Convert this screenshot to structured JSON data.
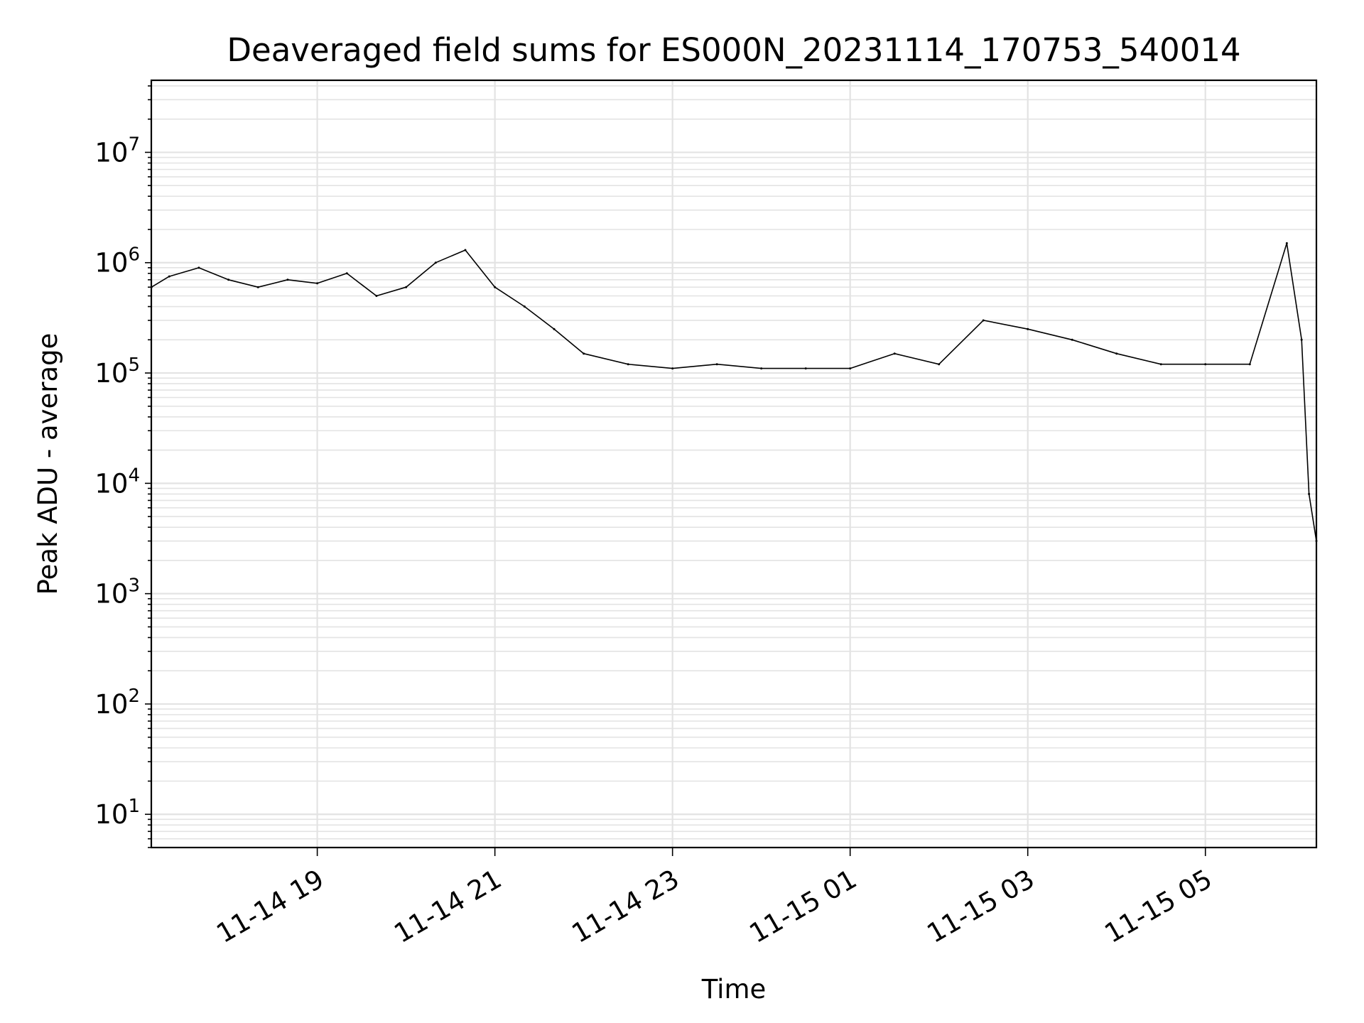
{
  "chart_data": {
    "type": "line",
    "title": "Deaveraged field sums for ES000N_20231114_170753_540014",
    "xlabel": "Time",
    "ylabel": "Peak ADU - average",
    "yscale": "log",
    "ylim": [
      5,
      45000000
    ],
    "xlim": [
      "2023-11-14 17:07:53",
      "2023-11-15 06:15:00"
    ],
    "grid": true,
    "line_color": "#000000",
    "grid_color": "#e3e3e3",
    "x_ticks": [
      {
        "value": "2023-11-14 19:00",
        "label": "11-14 19"
      },
      {
        "value": "2023-11-14 21:00",
        "label": "11-14 21"
      },
      {
        "value": "2023-11-14 23:00",
        "label": "11-14 23"
      },
      {
        "value": "2023-11-15 01:00",
        "label": "11-15 01"
      },
      {
        "value": "2023-11-15 03:00",
        "label": "11-15 03"
      },
      {
        "value": "2023-11-15 05:00",
        "label": "11-15 05"
      }
    ],
    "y_ticks": [
      {
        "value": 10,
        "base": "10",
        "exp": "1"
      },
      {
        "value": 100,
        "base": "10",
        "exp": "2"
      },
      {
        "value": 1000,
        "base": "10",
        "exp": "3"
      },
      {
        "value": 10000,
        "base": "10",
        "exp": "4"
      },
      {
        "value": 100000,
        "base": "10",
        "exp": "5"
      },
      {
        "value": 1000000,
        "base": "10",
        "exp": "6"
      },
      {
        "value": 10000000,
        "base": "10",
        "exp": "7"
      }
    ],
    "series": [
      {
        "x": [
          "2023-11-14 17:08",
          "2023-11-14 17:20",
          "2023-11-14 17:40",
          "2023-11-14 18:00",
          "2023-11-14 18:20",
          "2023-11-14 18:40",
          "2023-11-14 19:00",
          "2023-11-14 19:20",
          "2023-11-14 19:40",
          "2023-11-14 20:00",
          "2023-11-14 20:20",
          "2023-11-14 20:40",
          "2023-11-14 21:00",
          "2023-11-14 21:20",
          "2023-11-14 21:40",
          "2023-11-14 22:00",
          "2023-11-14 22:30",
          "2023-11-14 23:00",
          "2023-11-14 23:30",
          "2023-11-15 00:00",
          "2023-11-15 00:30",
          "2023-11-15 01:00",
          "2023-11-15 01:30",
          "2023-11-15 02:00",
          "2023-11-15 02:30",
          "2023-11-15 03:00",
          "2023-11-15 03:30",
          "2023-11-15 04:00",
          "2023-11-15 04:30",
          "2023-11-15 05:00",
          "2023-11-15 05:30",
          "2023-11-15 05:55",
          "2023-11-15 06:05",
          "2023-11-15 06:10",
          "2023-11-15 06:15"
        ],
        "values": [
          600000,
          750000,
          900000,
          700000,
          600000,
          700000,
          650000,
          800000,
          500000,
          600000,
          1000000,
          1300000,
          600000,
          400000,
          250000,
          150000,
          120000,
          110000,
          120000,
          110000,
          110000,
          110000,
          150000,
          120000,
          300000,
          250000,
          200000,
          150000,
          120000,
          120000,
          120000,
          1500000,
          200000,
          8000,
          3000
        ]
      }
    ]
  }
}
